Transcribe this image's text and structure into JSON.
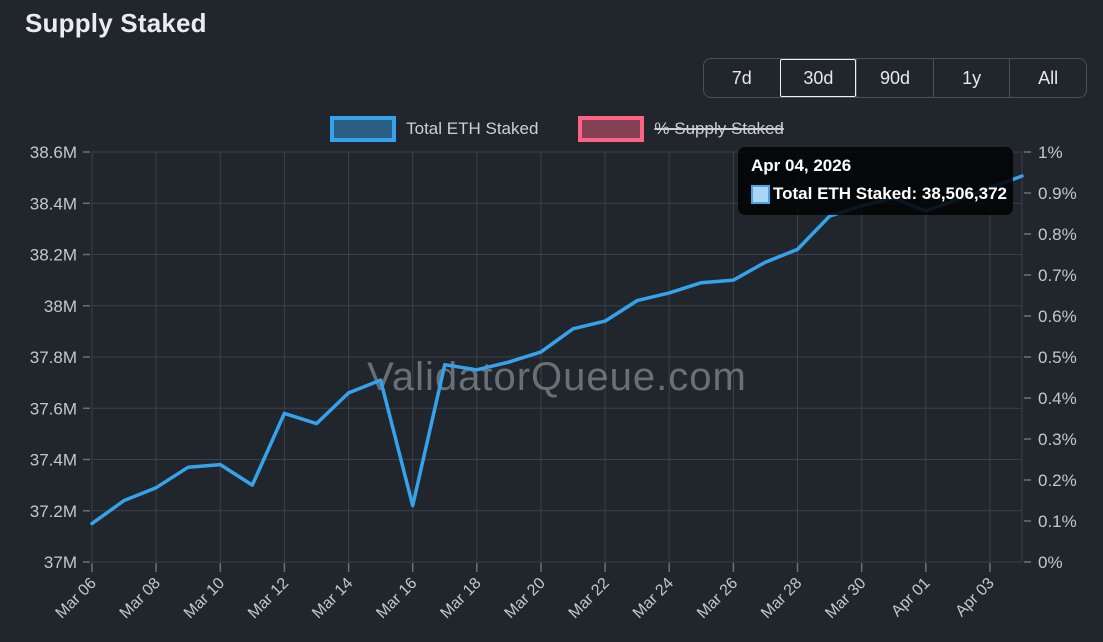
{
  "page": {
    "title": "Supply Staked",
    "background": "#21262d"
  },
  "range_selector": {
    "options": [
      "7d",
      "30d",
      "90d",
      "1y",
      "All"
    ],
    "selected": "30d"
  },
  "legend": {
    "items": [
      {
        "label": "Total ETH Staked",
        "color": "#36a2eb",
        "fill": "rgba(54,162,235,0.45)",
        "active": true
      },
      {
        "label": "% Supply Staked",
        "color": "#ff6384",
        "fill": "rgba(255,99,132,0.45)",
        "active": false
      }
    ]
  },
  "tooltip": {
    "title": "Apr 04, 2026",
    "label": "Total ETH Staked: 38,506,372",
    "swatch_color": "#a9d6f2"
  },
  "chart_data": {
    "type": "line",
    "title": "Supply Staked",
    "watermark": "ValidatorQueue.com",
    "grid": true,
    "legend_position": "top",
    "x": [
      "Mar 06",
      "Mar 07",
      "Mar 08",
      "Mar 09",
      "Mar 10",
      "Mar 11",
      "Mar 12",
      "Mar 13",
      "Mar 14",
      "Mar 15",
      "Mar 16",
      "Mar 17",
      "Mar 18",
      "Mar 19",
      "Mar 20",
      "Mar 21",
      "Mar 22",
      "Mar 23",
      "Mar 24",
      "Mar 25",
      "Mar 26",
      "Mar 27",
      "Mar 28",
      "Mar 29",
      "Mar 30",
      "Mar 31",
      "Apr 01",
      "Apr 02",
      "Apr 03",
      "Apr 04"
    ],
    "x_tick_labels": [
      "Mar 06",
      "Mar 08",
      "Mar 10",
      "Mar 12",
      "Mar 14",
      "Mar 16",
      "Mar 18",
      "Mar 20",
      "Mar 22",
      "Mar 24",
      "Mar 26",
      "Mar 28",
      "Mar 30",
      "Apr 01",
      "Apr 03"
    ],
    "series": [
      {
        "name": "Total ETH Staked",
        "color": "#36a2eb",
        "axis": "left",
        "hidden": false,
        "values": [
          37150000,
          37240000,
          37290000,
          37370000,
          37380000,
          37300000,
          37580000,
          37540000,
          37660000,
          37710000,
          37220000,
          37770000,
          37750000,
          37780000,
          37820000,
          37910000,
          37940000,
          38020000,
          38050000,
          38090000,
          38100000,
          38170000,
          38220000,
          38350000,
          38390000,
          38420000,
          38370000,
          38415000,
          38460000,
          38506372
        ]
      },
      {
        "name": "% Supply Staked",
        "color": "#ff6384",
        "axis": "right",
        "hidden": true,
        "values": []
      }
    ],
    "left_axis": {
      "min": 37000000,
      "max": 38600000,
      "tick_labels": [
        "38.6M",
        "38.4M",
        "38.2M",
        "38M",
        "37.8M",
        "37.6M",
        "37.4M",
        "37.2M",
        "37M"
      ]
    },
    "right_axis": {
      "min": 0,
      "max": 1,
      "tick_labels": [
        "1%",
        "0.9%",
        "0.8%",
        "0.7%",
        "0.6%",
        "0.5%",
        "0.4%",
        "0.3%",
        "0.2%",
        "0.1%",
        "0%"
      ]
    }
  }
}
